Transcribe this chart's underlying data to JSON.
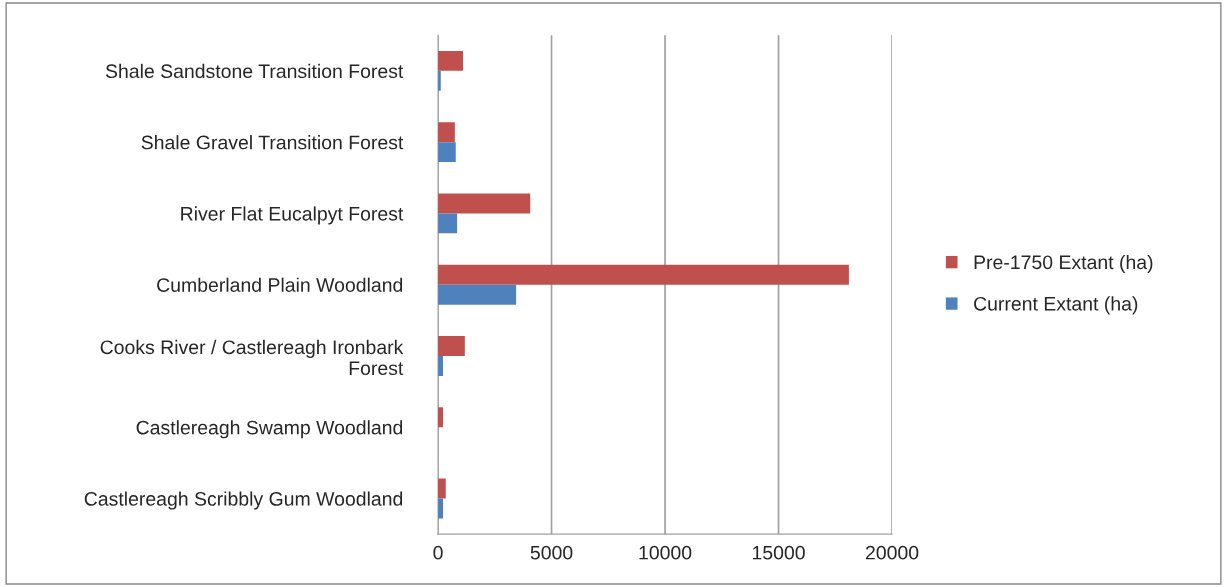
{
  "chart_data": {
    "type": "bar",
    "orientation": "horizontal",
    "categories": [
      "Shale Sandstone Transition Forest",
      "Shale Gravel Transition Forest",
      "River Flat Eucalpyt Forest",
      "Cumberland Plain Woodland",
      "Cooks River / Castlereagh Ironbark\nForest",
      "Castlereagh Swamp Woodland",
      "Castlereagh Scribbly Gum Woodland"
    ],
    "series": [
      {
        "name": "Pre-1750 Extant (ha)",
        "color": "#c0504d",
        "values": [
          1100,
          740,
          4060,
          18100,
          1180,
          220,
          340
        ]
      },
      {
        "name": "Current Extant (ha)",
        "color": "#4f81bd",
        "values": [
          120,
          780,
          840,
          3440,
          220,
          null,
          220
        ]
      }
    ],
    "xlim": [
      0,
      20000
    ],
    "xticks": [
      0,
      5000,
      10000,
      15000,
      20000
    ],
    "grid": "x",
    "legend": "right"
  }
}
